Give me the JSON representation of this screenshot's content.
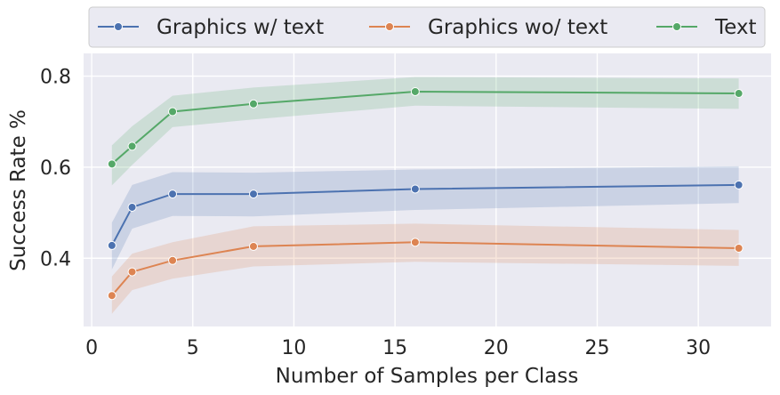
{
  "chart_data": {
    "type": "line",
    "xlabel": "Number of Samples per Class",
    "ylabel": "Success Rate %",
    "xlim": [
      -0.4,
      33.6
    ],
    "ylim": [
      0.25,
      0.85
    ],
    "xticks": [
      0,
      5,
      10,
      15,
      20,
      25,
      30
    ],
    "yticks": [
      0.4,
      0.6,
      0.8
    ],
    "grid": true,
    "legend_position": "top",
    "series": [
      {
        "name": "Graphics w/ text",
        "color": "#4c72b0",
        "x": [
          1,
          2,
          4,
          8,
          16,
          32
        ],
        "y": [
          0.428,
          0.512,
          0.541,
          0.541,
          0.552,
          0.561
        ],
        "ci_low": [
          0.375,
          0.465,
          0.493,
          0.492,
          0.506,
          0.521
        ],
        "ci_high": [
          0.478,
          0.561,
          0.589,
          0.588,
          0.595,
          0.602
        ]
      },
      {
        "name": "Graphics wo/ text",
        "color": "#dd8452",
        "x": [
          1,
          2,
          4,
          8,
          16,
          32
        ],
        "y": [
          0.318,
          0.37,
          0.395,
          0.426,
          0.435,
          0.422
        ],
        "ci_low": [
          0.278,
          0.33,
          0.355,
          0.382,
          0.392,
          0.383
        ],
        "ci_high": [
          0.36,
          0.41,
          0.435,
          0.47,
          0.476,
          0.462
        ]
      },
      {
        "name": "Text",
        "color": "#55a868",
        "x": [
          1,
          2,
          4,
          8,
          16,
          32
        ],
        "y": [
          0.607,
          0.646,
          0.722,
          0.739,
          0.766,
          0.762
        ],
        "ci_low": [
          0.56,
          0.605,
          0.688,
          0.705,
          0.735,
          0.728
        ],
        "ci_high": [
          0.648,
          0.69,
          0.757,
          0.775,
          0.798,
          0.795
        ]
      }
    ]
  }
}
